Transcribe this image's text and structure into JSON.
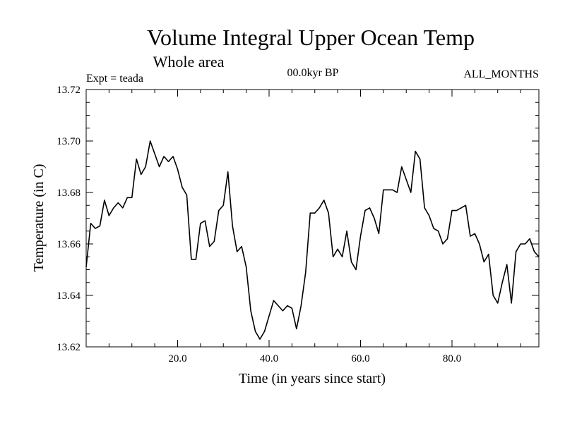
{
  "chart_data": {
    "type": "line",
    "title": "Volume Integral Upper Ocean Temp",
    "subtitle": "Whole area",
    "annotations": {
      "left": "Expt = teada",
      "center": "00.0kyr BP",
      "right": "ALL_MONTHS"
    },
    "xlabel": "Time (in years since start)",
    "ylabel": "Temperature (in C)",
    "xlim": [
      0,
      99
    ],
    "ylim": [
      13.62,
      13.72
    ],
    "x_ticks": [
      20,
      40,
      60,
      80
    ],
    "x_tick_labels": [
      "20.0",
      "40.0",
      "60.0",
      "80.0"
    ],
    "y_ticks": [
      13.62,
      13.64,
      13.66,
      13.68,
      13.7,
      13.72
    ],
    "y_tick_labels": [
      "13.62",
      "13.64",
      "13.66",
      "13.68",
      "13.70",
      "13.72"
    ],
    "grid": false,
    "series": [
      {
        "name": "Temperature",
        "x": [
          0,
          1,
          2,
          3,
          4,
          5,
          6,
          7,
          8,
          9,
          10,
          11,
          12,
          13,
          14,
          15,
          16,
          17,
          18,
          19,
          20,
          21,
          22,
          23,
          24,
          25,
          26,
          27,
          28,
          29,
          30,
          31,
          32,
          33,
          34,
          35,
          36,
          37,
          38,
          39,
          40,
          41,
          42,
          43,
          44,
          45,
          46,
          47,
          48,
          49,
          50,
          51,
          52,
          53,
          54,
          55,
          56,
          57,
          58,
          59,
          60,
          61,
          62,
          63,
          64,
          65,
          66,
          67,
          68,
          69,
          70,
          71,
          72,
          73,
          74,
          75,
          76,
          77,
          78,
          79,
          80,
          81,
          82,
          83,
          84,
          85,
          86,
          87,
          88,
          89,
          90,
          91,
          92,
          93,
          94,
          95,
          96,
          97,
          98,
          99
        ],
        "values": [
          13.651,
          13.668,
          13.666,
          13.667,
          13.677,
          13.671,
          13.674,
          13.676,
          13.674,
          13.678,
          13.678,
          13.693,
          13.687,
          13.69,
          13.7,
          13.695,
          13.69,
          13.694,
          13.692,
          13.694,
          13.689,
          13.682,
          13.679,
          13.654,
          13.654,
          13.668,
          13.669,
          13.659,
          13.661,
          13.673,
          13.675,
          13.688,
          13.667,
          13.657,
          13.659,
          13.651,
          13.634,
          13.626,
          13.623,
          13.626,
          13.632,
          13.638,
          13.636,
          13.634,
          13.636,
          13.635,
          13.627,
          13.636,
          13.649,
          13.672,
          13.672,
          13.674,
          13.677,
          13.672,
          13.655,
          13.658,
          13.655,
          13.665,
          13.653,
          13.65,
          13.663,
          13.673,
          13.674,
          13.67,
          13.664,
          13.681,
          13.681,
          13.681,
          13.68,
          13.69,
          13.685,
          13.68,
          13.696,
          13.693,
          13.674,
          13.671,
          13.666,
          13.665,
          13.66,
          13.662,
          13.673,
          13.673,
          13.674,
          13.675,
          13.663,
          13.664,
          13.66,
          13.653,
          13.656,
          13.64,
          13.637,
          13.645,
          13.652,
          13.637,
          13.657,
          13.66,
          13.66,
          13.662,
          13.657,
          13.655
        ]
      }
    ]
  }
}
